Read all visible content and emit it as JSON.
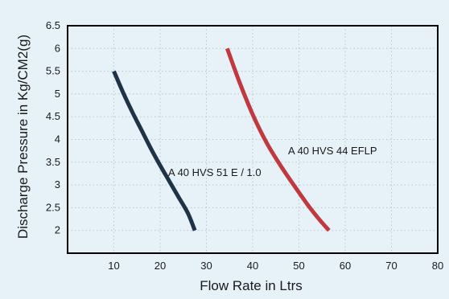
{
  "chart_data": {
    "type": "line",
    "title": "",
    "xlabel": "Flow Rate in Ltrs",
    "ylabel": "Discharge Pressure in Kg/CM2(g)",
    "xlim": [
      0,
      80
    ],
    "ylim": [
      1.5,
      6.5
    ],
    "x_ticks": [
      "10",
      "20",
      "30",
      "40",
      "50",
      "60",
      "70",
      "80"
    ],
    "y_ticks": [
      "2",
      "2.5",
      "3",
      "3.5",
      "4",
      "4.5",
      "5",
      "5.5",
      "6",
      "6.5"
    ],
    "grid": true,
    "series": [
      {
        "name": "A 40 HVS 51 E / 1.0",
        "color": "#1f3347",
        "x": [
          10,
          12,
          14,
          16,
          18,
          20,
          22,
          24,
          26,
          27.5
        ],
        "y": [
          5.5,
          5.03,
          4.6,
          4.2,
          3.8,
          3.43,
          3.08,
          2.73,
          2.38,
          2.0
        ]
      },
      {
        "name": "A 40 HVS 44 EFLP",
        "color": "#c0393e",
        "x": [
          34.5,
          37,
          40,
          43,
          46,
          49,
          52,
          54.5,
          56.5
        ],
        "y": [
          6.0,
          5.3,
          4.55,
          3.93,
          3.43,
          2.98,
          2.55,
          2.23,
          2.0
        ]
      }
    ]
  }
}
